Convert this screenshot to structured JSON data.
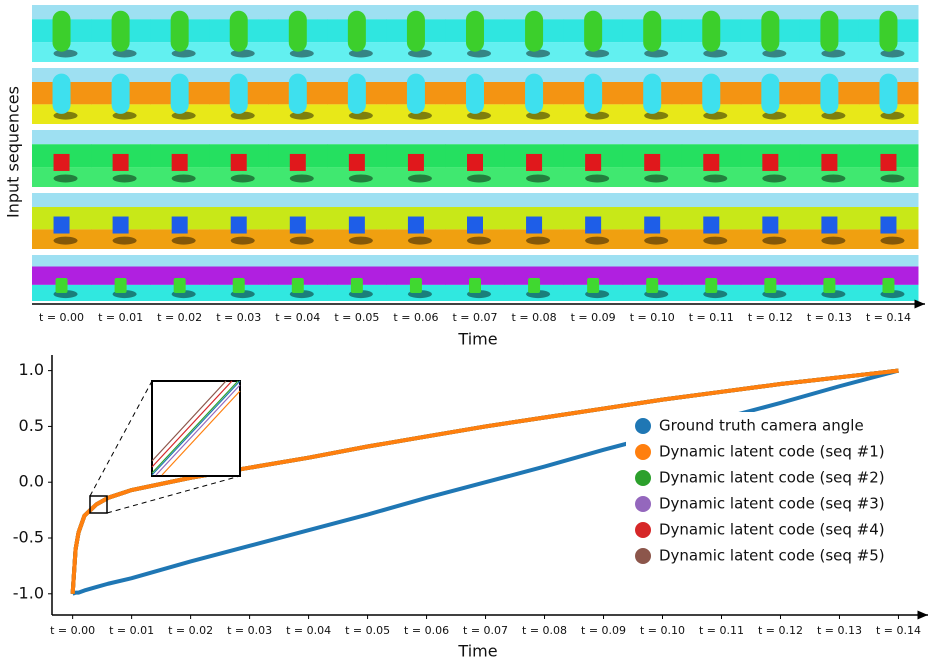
{
  "chart_data": [
    {
      "type": "image-grid",
      "y_label": "Input sequences",
      "x_label": "Time",
      "categories": [
        "t = 0.00",
        "t = 0.01",
        "t = 0.02",
        "t = 0.03",
        "t = 0.04",
        "t = 0.05",
        "t = 0.06",
        "t = 0.07",
        "t = 0.08",
        "t = 0.09",
        "t = 0.10",
        "t = 0.11",
        "t = 0.12",
        "t = 0.13",
        "t = 0.14"
      ]
    },
    {
      "type": "line",
      "x_label": "Time",
      "x": [
        0,
        0.0005,
        0.001,
        0.002,
        0.004,
        0.006,
        0.01,
        0.02,
        0.03,
        0.04,
        0.05,
        0.06,
        0.07,
        0.08,
        0.09,
        0.1,
        0.11,
        0.12,
        0.13,
        0.14
      ],
      "xlim": [
        -0.0035,
        0.1445
      ],
      "xticks": [
        {
          "value": 0,
          "label": "t = 0.00"
        },
        {
          "value": 0.01,
          "label": "t = 0.01"
        },
        {
          "value": 0.02,
          "label": "t = 0.02"
        },
        {
          "value": 0.03,
          "label": "t = 0.03"
        },
        {
          "value": 0.04,
          "label": "t = 0.04"
        },
        {
          "value": 0.05,
          "label": "t = 0.05"
        },
        {
          "value": 0.06,
          "label": "t = 0.06"
        },
        {
          "value": 0.07,
          "label": "t = 0.07"
        },
        {
          "value": 0.08,
          "label": "t = 0.08"
        },
        {
          "value": 0.09,
          "label": "t = 0.09"
        },
        {
          "value": 0.1,
          "label": "t = 0.10"
        },
        {
          "value": 0.11,
          "label": "t = 0.11"
        },
        {
          "value": 0.12,
          "label": "t = 0.12"
        },
        {
          "value": 0.13,
          "label": "t = 0.13"
        },
        {
          "value": 0.14,
          "label": "t = 0.14"
        }
      ],
      "ylim": [
        -1.19,
        1.14
      ],
      "yticks": [
        {
          "value": 1,
          "label": "1.0"
        },
        {
          "value": 0.5,
          "label": "0.5"
        },
        {
          "value": 0,
          "label": "0.0"
        },
        {
          "value": -0.5,
          "label": "-0.5"
        },
        {
          "value": -1,
          "label": "-1.0"
        }
      ],
      "legend": "lower right",
      "series": [
        {
          "name": "Ground truth camera angle",
          "color": "#1f77b4",
          "values": [
            -1,
            -0.99,
            -0.99,
            -0.97,
            -0.94,
            -0.91,
            -0.86,
            -0.71,
            -0.57,
            -0.43,
            -0.29,
            -0.14,
            0,
            0.14,
            0.29,
            0.43,
            0.57,
            0.71,
            0.86,
            1
          ]
        },
        {
          "name": "Dynamic latent code (seq #1)",
          "color": "#ff7f0e",
          "values": [
            -1,
            -0.6,
            -0.45,
            -0.3,
            -0.2,
            -0.14,
            -0.07,
            0.04,
            0.13,
            0.22,
            0.32,
            0.41,
            0.5,
            0.58,
            0.66,
            0.74,
            0.81,
            0.88,
            0.94,
            1
          ]
        },
        {
          "name": "Dynamic latent code (seq #2)",
          "color": "#2ca02c",
          "values": [
            -1,
            -0.6,
            -0.45,
            -0.3,
            -0.2,
            -0.14,
            -0.07,
            0.04,
            0.13,
            0.22,
            0.32,
            0.41,
            0.5,
            0.58,
            0.66,
            0.74,
            0.81,
            0.88,
            0.94,
            1
          ]
        },
        {
          "name": "Dynamic latent code (seq #3)",
          "color": "#9467bd",
          "values": [
            -1,
            -0.6,
            -0.45,
            -0.3,
            -0.2,
            -0.14,
            -0.07,
            0.04,
            0.13,
            0.22,
            0.32,
            0.41,
            0.5,
            0.58,
            0.66,
            0.74,
            0.81,
            0.88,
            0.94,
            1
          ]
        },
        {
          "name": "Dynamic latent code (seq #4)",
          "color": "#d62728",
          "values": [
            -1,
            -0.6,
            -0.45,
            -0.3,
            -0.2,
            -0.14,
            -0.07,
            0.04,
            0.13,
            0.22,
            0.32,
            0.41,
            0.5,
            0.58,
            0.66,
            0.74,
            0.81,
            0.88,
            0.94,
            1
          ]
        },
        {
          "name": "Dynamic latent code (seq #5)",
          "color": "#8c564b",
          "values": [
            -1,
            -0.6,
            -0.45,
            -0.3,
            -0.2,
            -0.14,
            -0.07,
            0.04,
            0.13,
            0.22,
            0.32,
            0.41,
            0.5,
            0.58,
            0.66,
            0.74,
            0.81,
            0.88,
            0.94,
            1
          ]
        }
      ]
    }
  ]
}
